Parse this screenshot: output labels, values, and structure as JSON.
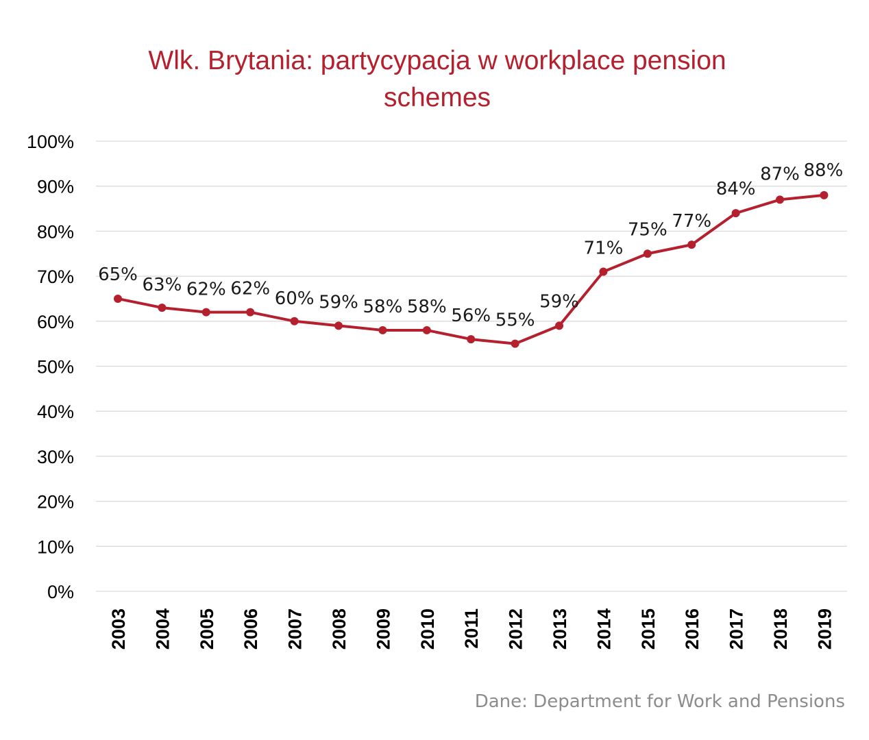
{
  "chart_data": {
    "type": "line",
    "title": "Wlk. Brytania: partycypacja w workplace pension schemes",
    "title_lines": [
      "Wlk. Brytania: partycypacja w workplace pension",
      "schemes"
    ],
    "categories": [
      "2003",
      "2004",
      "2005",
      "2006",
      "2007",
      "2008",
      "2009",
      "2010",
      "2011",
      "2012",
      "2013",
      "2014",
      "2015",
      "2016",
      "2017",
      "2018",
      "2019"
    ],
    "series": [
      {
        "values": [
          65,
          63,
          62,
          62,
          60,
          59,
          58,
          58,
          56,
          55,
          59,
          71,
          75,
          77,
          84,
          87,
          88
        ],
        "data_labels": [
          "65%",
          "63%",
          "62%",
          "62%",
          "60%",
          "59%",
          "58%",
          "58%",
          "56%",
          "55%",
          "59%",
          "71%",
          "75%",
          "77%",
          "84%",
          "87%",
          "88%"
        ],
        "color": "#b5202e"
      }
    ],
    "y_ticks": [
      "0%",
      "10%",
      "20%",
      "30%",
      "40%",
      "50%",
      "60%",
      "70%",
      "80%",
      "90%",
      "100%"
    ],
    "ylim": [
      0,
      100
    ],
    "xlabel": "",
    "ylabel": "",
    "grid": true,
    "legend": "none",
    "x_tick_rotation": "vertical"
  },
  "source": "Dane: Department for Work and Pensions",
  "colors": {
    "title": "#b5202e",
    "line": "#b5202e",
    "grid": "#d9d9d9",
    "source": "#8c8c8c"
  }
}
